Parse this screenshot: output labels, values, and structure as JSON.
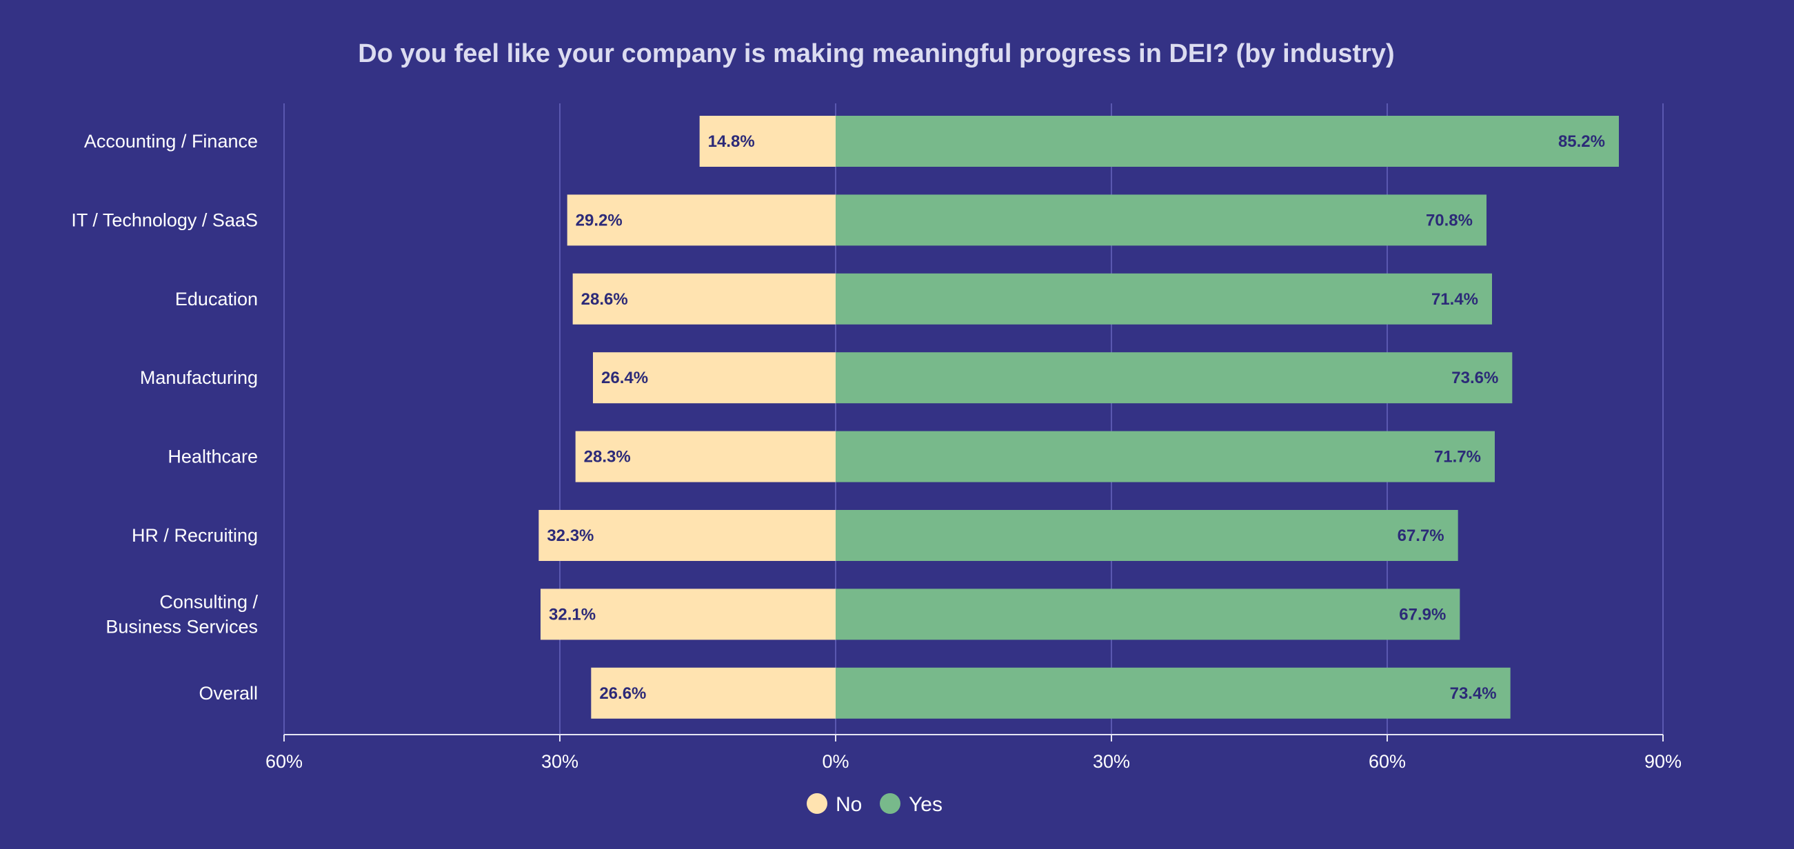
{
  "colors": {
    "background": "#343285",
    "no": "#ffe3b0",
    "yes": "#78b98b",
    "grid": "#5a58b0",
    "axis": "#e6e6f4"
  },
  "chart_data": {
    "type": "bar",
    "orientation": "horizontal",
    "stacking": "diverging",
    "title": "Do you feel like your company is making meaningful progress in DEI? (by industry)",
    "categories": [
      [
        "Accounting / Finance"
      ],
      [
        "IT / Technology / SaaS"
      ],
      [
        "Education"
      ],
      [
        "Manufacturing"
      ],
      [
        "Healthcare"
      ],
      [
        "HR / Recruiting"
      ],
      [
        "Consulting /",
        "Business Services"
      ],
      [
        "Overall"
      ]
    ],
    "series": [
      {
        "name": "No",
        "direction": "left",
        "values": [
          14.8,
          29.2,
          28.6,
          26.4,
          28.3,
          32.3,
          32.1,
          26.6
        ],
        "labels": [
          "14.8%",
          "29.2%",
          "28.6%",
          "26.4%",
          "28.3%",
          "32.3%",
          "32.1%",
          "26.6%"
        ]
      },
      {
        "name": "Yes",
        "direction": "right",
        "values": [
          85.2,
          70.8,
          71.4,
          73.6,
          71.7,
          67.7,
          67.9,
          73.4
        ],
        "labels": [
          "85.2%",
          "70.8%",
          "71.4%",
          "73.6%",
          "71.7%",
          "67.7%",
          "67.9%",
          "73.4%"
        ]
      }
    ],
    "xlim": [
      -60,
      90
    ],
    "xticks": [
      -60,
      -30,
      0,
      30,
      60,
      90
    ],
    "xtick_labels": [
      "60%",
      "30%",
      "0%",
      "30%",
      "60%",
      "90%"
    ],
    "grid": true,
    "legend": {
      "position": "bottom-center",
      "entries": [
        "No",
        "Yes"
      ]
    }
  }
}
